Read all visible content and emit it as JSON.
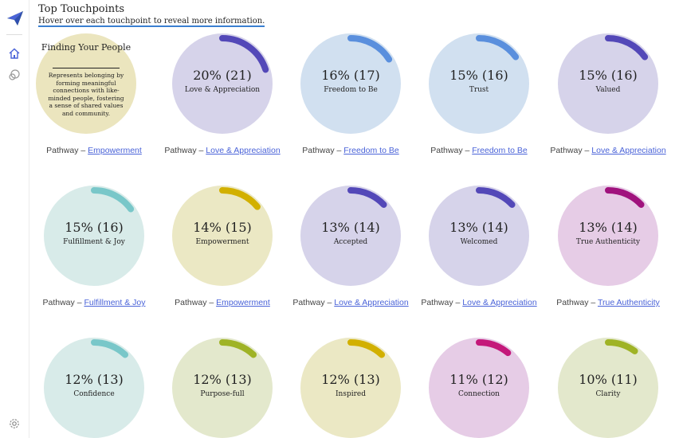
{
  "header": {
    "title": "Top Touchpoints",
    "subtitle": "Hover over each touchpoint to reveal more information."
  },
  "feature": {
    "title": "Finding Your People",
    "description": "Represents belonging by forming meaningful connections with like-minded people, fostering a sense of shared values and community.",
    "pathway_prefix": "Pathway –",
    "pathway": "Empowerment"
  },
  "touchpoints": [
    {
      "pct": "20% (21)",
      "label": "Love & Appreciation",
      "pathway_prefix": "Pathway –",
      "pathway": "Love & Appreciation",
      "value": 0.2,
      "bg": "#d6d3ea",
      "accent": "#5348b8"
    },
    {
      "pct": "16% (17)",
      "label": "Freedom to Be",
      "pathway_prefix": "Pathway –",
      "pathway": "Freedom to Be",
      "value": 0.16,
      "bg": "#d1e0f0",
      "accent": "#5a8fdd"
    },
    {
      "pct": "15% (16)",
      "label": "Trust",
      "pathway_prefix": "Pathway –",
      "pathway": "Freedom to Be",
      "value": 0.15,
      "bg": "#d1e0f0",
      "accent": "#5a8fdd"
    },
    {
      "pct": "15% (16)",
      "label": "Valued",
      "pathway_prefix": "Pathway –",
      "pathway": "Love & Appreciation",
      "value": 0.15,
      "bg": "#d6d3ea",
      "accent": "#5348b8"
    },
    {
      "pct": "15% (16)",
      "label": "Fulfillment & Joy",
      "pathway_prefix": "Pathway –",
      "pathway": "Fulfillment & Joy",
      "value": 0.15,
      "bg": "#d8ebe9",
      "accent": "#79c7c9"
    },
    {
      "pct": "14% (15)",
      "label": "Empowerment",
      "pathway_prefix": "Pathway –",
      "pathway": "Empowerment",
      "value": 0.14,
      "bg": "#ebe8c4",
      "accent": "#d2b000"
    },
    {
      "pct": "13% (14)",
      "label": "Accepted",
      "pathway_prefix": "Pathway –",
      "pathway": "Love & Appreciation",
      "value": 0.13,
      "bg": "#d6d3ea",
      "accent": "#5348b8"
    },
    {
      "pct": "13% (14)",
      "label": "Welcomed",
      "pathway_prefix": "Pathway –",
      "pathway": "Love & Appreciation",
      "value": 0.13,
      "bg": "#d6d3ea",
      "accent": "#5348b8"
    },
    {
      "pct": "13% (14)",
      "label": "True Authenticity",
      "pathway_prefix": "Pathway –",
      "pathway": "True Authenticity",
      "value": 0.13,
      "bg": "#e6cce6",
      "accent": "#a0127d"
    },
    {
      "pct": "12% (13)",
      "label": "Confidence",
      "pathway_prefix": "",
      "pathway": "",
      "value": 0.12,
      "bg": "#d8ebe9",
      "accent": "#79c7c9"
    },
    {
      "pct": "12% (13)",
      "label": "Purpose-full",
      "pathway_prefix": "",
      "pathway": "",
      "value": 0.12,
      "bg": "#e3e8cc",
      "accent": "#9fb326"
    },
    {
      "pct": "12% (13)",
      "label": "Inspired",
      "pathway_prefix": "",
      "pathway": "",
      "value": 0.12,
      "bg": "#ebe8c4",
      "accent": "#d2b000"
    },
    {
      "pct": "11% (12)",
      "label": "Connection",
      "pathway_prefix": "",
      "pathway": "",
      "value": 0.11,
      "bg": "#e6cce6",
      "accent": "#c4187a"
    },
    {
      "pct": "10% (11)",
      "label": "Clarity",
      "pathway_prefix": "",
      "pathway": "",
      "value": 0.1,
      "bg": "#e3e8cc",
      "accent": "#9fb326"
    }
  ]
}
